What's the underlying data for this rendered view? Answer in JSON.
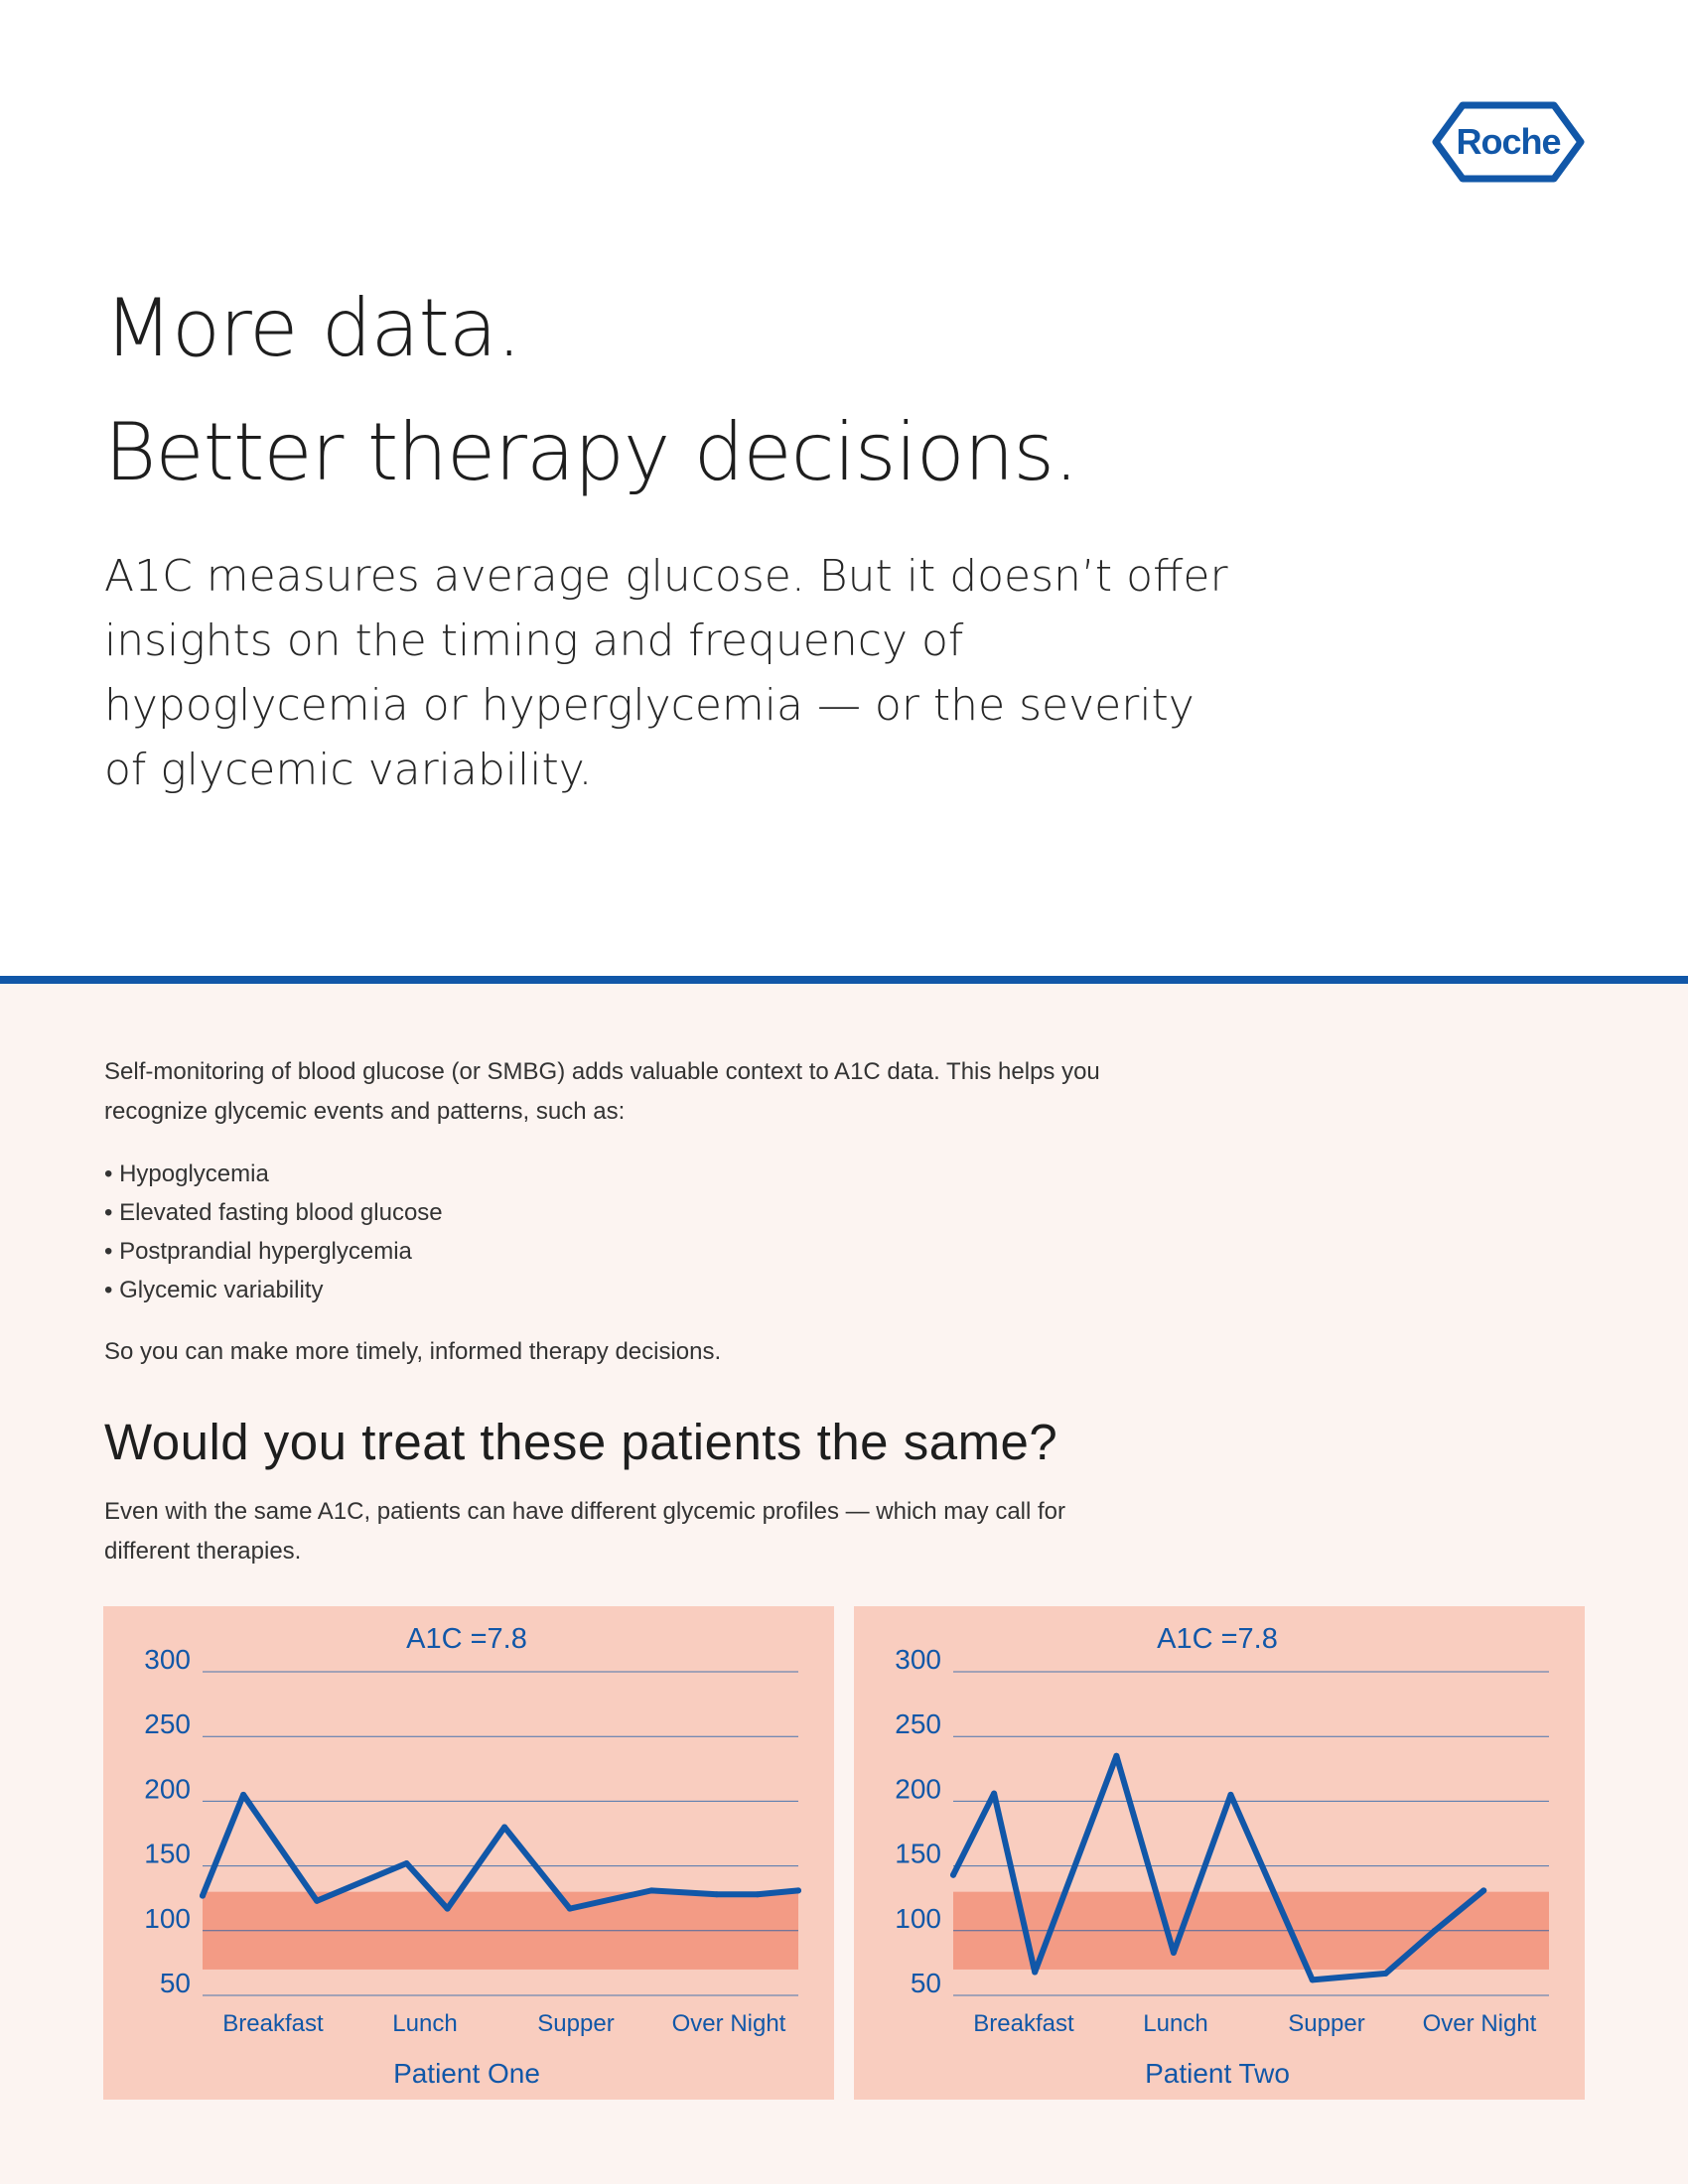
{
  "brand": {
    "logo_text": "Roche",
    "color": "#1157a8"
  },
  "headline": {
    "line1": "More data.",
    "line2": "Better therapy decisions."
  },
  "intro": "A1C measures average glucose. But it doesn’t offer insights on the timing and frequency of hypoglycemia or hyperglycemia — or the severity of glycemic variability.",
  "smbg": {
    "paragraph": "Self-monitoring of blood glucose (or SMBG) adds valuable context to A1C data. This helps you recognize glycemic events and patterns, such as:",
    "bullets": [
      "Hypoglycemia",
      "Elevated fasting blood glucose",
      "Postprandial hyperglycemia",
      "Glycemic variability"
    ],
    "closing": "So you can make more timely, informed therapy decisions."
  },
  "section": {
    "heading": "Would you treat these patients the same?",
    "subtext": "Even with the same A1C, patients can have different glycemic profiles — which may call for different therapies."
  },
  "chart_data": [
    {
      "type": "line",
      "title": "A1C =7.8",
      "xlabel": "Patient One",
      "ylim": [
        50,
        300
      ],
      "yticks": [
        300,
        250,
        200,
        150,
        100,
        50
      ],
      "categories": [
        "Breakfast",
        "Lunch",
        "Supper",
        "Over Night"
      ],
      "target_range": [
        70,
        130
      ],
      "x": [
        0,
        0.5,
        1.4,
        2.5,
        3.0,
        3.7,
        4.5,
        5.5,
        6.3,
        6.8,
        7.3
      ],
      "values": [
        127,
        205,
        123,
        152,
        117,
        180,
        117,
        131,
        128,
        128,
        131
      ],
      "band_color": "#f39b85",
      "line_color": "#1157a8",
      "grid": true
    },
    {
      "type": "line",
      "title": "A1C =7.8",
      "xlabel": "Patient Two",
      "ylim": [
        50,
        300
      ],
      "yticks": [
        300,
        250,
        200,
        150,
        100,
        50
      ],
      "categories": [
        "Breakfast",
        "Lunch",
        "Supper",
        "Over Night"
      ],
      "target_range": [
        70,
        130
      ],
      "x": [
        0,
        0.5,
        1.0,
        2.0,
        2.7,
        3.4,
        4.4,
        5.3,
        5.9,
        6.5
      ],
      "values": [
        143,
        206,
        68,
        235,
        83,
        205,
        62,
        67,
        100,
        131
      ],
      "band_color": "#f39b85",
      "line_color": "#1157a8",
      "grid": true
    }
  ]
}
